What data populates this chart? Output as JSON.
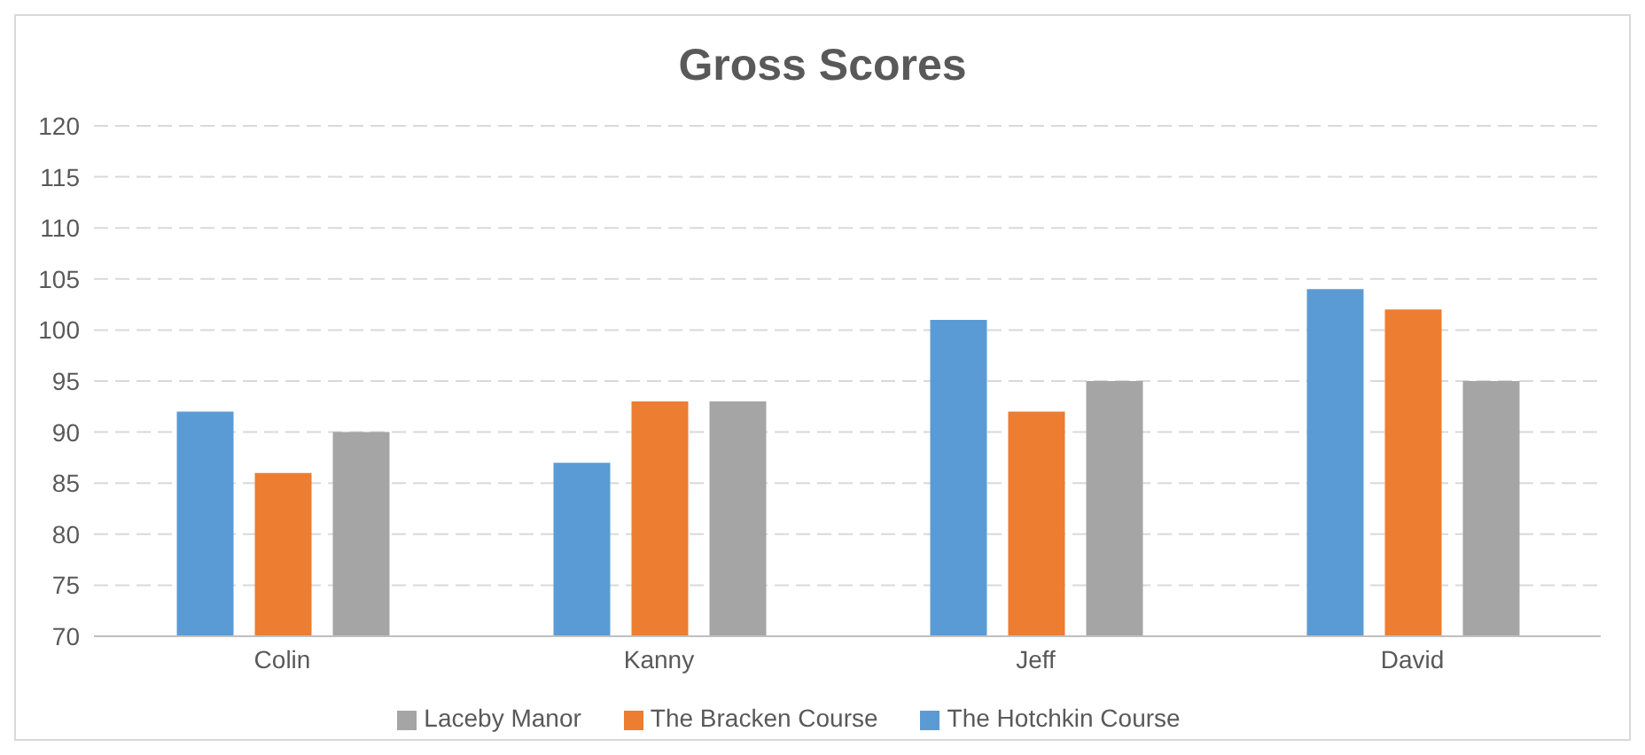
{
  "chart_data": {
    "type": "bar",
    "title": "Gross Scores",
    "categories": [
      "Colin",
      "Kanny",
      "Jeff",
      "David"
    ],
    "series": [
      {
        "name": "The Hotchkin Course",
        "color": "#5b9bd5",
        "values": [
          92,
          87,
          101,
          104
        ]
      },
      {
        "name": "The Bracken Course",
        "color": "#ed7d31",
        "values": [
          86,
          93,
          92,
          102
        ]
      },
      {
        "name": "Laceby Manor",
        "color": "#a5a5a5",
        "values": [
          90,
          93,
          95,
          95
        ]
      }
    ],
    "ylim": [
      70,
      120
    ],
    "yticks": [
      70,
      75,
      80,
      85,
      90,
      95,
      100,
      105,
      110,
      115,
      120
    ],
    "grid": "y",
    "legend": "bottom"
  }
}
